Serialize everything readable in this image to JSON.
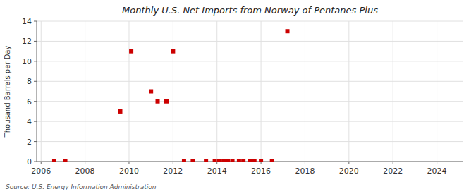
{
  "chart_data": {
    "type": "scatter",
    "title": "Monthly U.S. Net Imports from Norway of Pentanes Plus",
    "ylabel": "Thousand Barrels per Day",
    "annotations": [
      "Source: U.S. Energy Information Administration"
    ],
    "x": [
      2006.6,
      2007.1,
      2009.6,
      2010.1,
      2011.0,
      2011.3,
      2011.7,
      2012.0,
      2012.5,
      2012.9,
      2013.5,
      2013.9,
      2014.1,
      2014.3,
      2014.5,
      2014.7,
      2015.0,
      2015.2,
      2015.5,
      2015.7,
      2016.0,
      2016.5,
      2017.2
    ],
    "values": [
      0,
      0,
      5,
      11,
      7,
      6,
      6,
      11,
      0,
      0,
      0,
      0,
      0,
      0,
      0,
      0,
      0,
      0,
      0,
      0,
      0,
      0,
      13
    ],
    "color": "#cc0000",
    "marker": "square",
    "xlim": [
      2005.8,
      2025.2
    ],
    "ylim": [
      0,
      14
    ],
    "xticks": [
      2006,
      2008,
      2010,
      2012,
      2014,
      2016,
      2018,
      2020,
      2022,
      2024
    ],
    "yticks": [
      0,
      2,
      4,
      6,
      8,
      10,
      12,
      14
    ],
    "grid": true
  }
}
